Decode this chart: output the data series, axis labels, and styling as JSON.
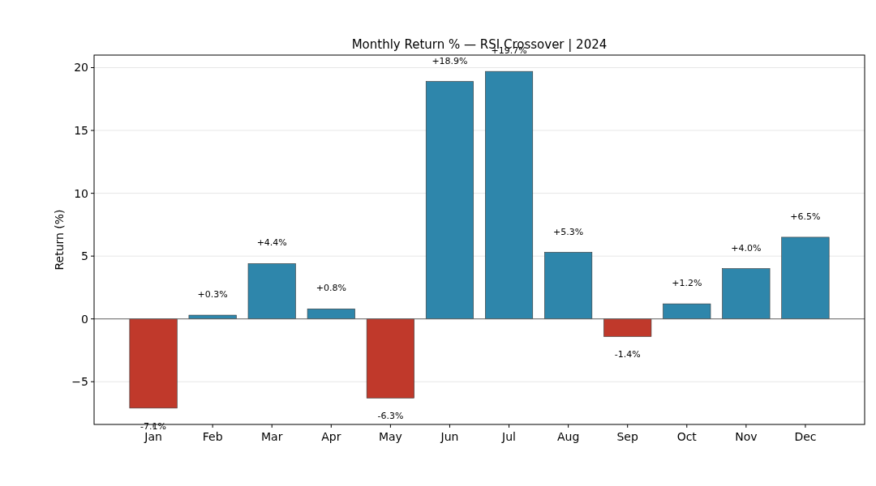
{
  "chart_data": {
    "type": "bar",
    "title": "Monthly Return % — RSI Crossover | 2024",
    "ylabel": "Return (%)",
    "categories": [
      "Jan",
      "Feb",
      "Mar",
      "Apr",
      "May",
      "Jun",
      "Jul",
      "Aug",
      "Sep",
      "Oct",
      "Nov",
      "Dec"
    ],
    "values": [
      -7.1,
      0.3,
      4.4,
      0.8,
      -6.3,
      18.9,
      19.7,
      5.3,
      -1.4,
      1.2,
      4.0,
      6.5
    ],
    "colors": [
      "#c0392b",
      "#2e86ab",
      "#2e86ab",
      "#2e86ab",
      "#c0392b",
      "#2e86ab",
      "#2e86ab",
      "#2e86ab",
      "#c0392b",
      "#2e86ab",
      "#2e86ab",
      "#2e86ab"
    ],
    "value_labels": [
      "-7.1%",
      "+0.3%",
      "+4.4%",
      "+0.8%",
      "-6.3%",
      "+18.9%",
      "+19.7%",
      "+5.3%",
      "-1.4%",
      "+1.2%",
      "+4.0%",
      "+6.5%"
    ],
    "ylim": [
      -8.4,
      21
    ],
    "yticks": [
      {
        "value": -5,
        "label": "−5"
      },
      0,
      5,
      10,
      15,
      20
    ],
    "ref_lines": [
      {
        "axis": "y",
        "value": 0,
        "color": "#666666"
      }
    ],
    "grid": "y"
  }
}
